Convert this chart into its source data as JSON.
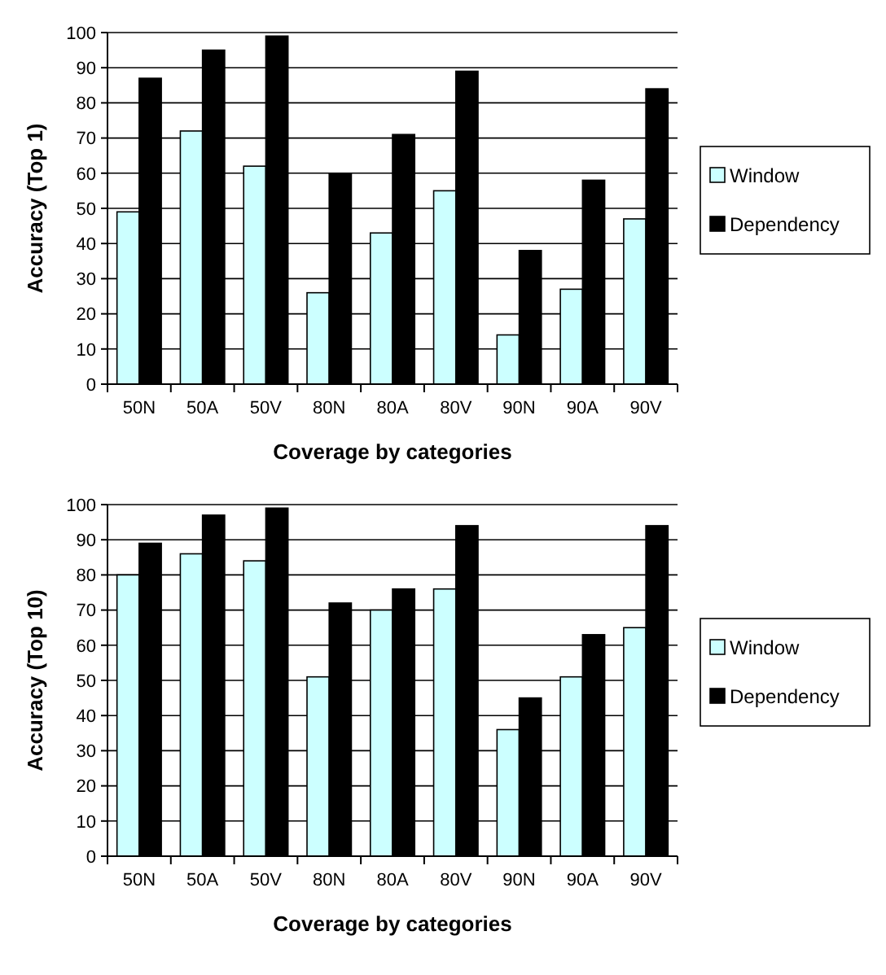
{
  "chart_data": [
    {
      "type": "bar",
      "xlabel": "Coverage by categories",
      "ylabel": "Accuracy (Top 1)",
      "categories": [
        "50N",
        "50A",
        "50V",
        "80N",
        "80A",
        "80V",
        "90N",
        "90A",
        "90V"
      ],
      "series": [
        {
          "name": "Window",
          "color": "#ccffff",
          "values": [
            49,
            72,
            62,
            26,
            43,
            55,
            14,
            27,
            47
          ]
        },
        {
          "name": "Dependency",
          "color": "#000000",
          "values": [
            87,
            95,
            99,
            60,
            71,
            89,
            38,
            58,
            84
          ]
        }
      ],
      "ylim": [
        0,
        100
      ],
      "yticks": [
        0,
        10,
        20,
        30,
        40,
        50,
        60,
        70,
        80,
        90,
        100
      ],
      "grid": "y",
      "legend": "right"
    },
    {
      "type": "bar",
      "xlabel": "Coverage by categories",
      "ylabel": "Accuracy (Top 10)",
      "categories": [
        "50N",
        "50A",
        "50V",
        "80N",
        "80A",
        "80V",
        "90N",
        "90A",
        "90V"
      ],
      "series": [
        {
          "name": "Window",
          "color": "#ccffff",
          "values": [
            80,
            86,
            84,
            51,
            70,
            76,
            36,
            51,
            65
          ]
        },
        {
          "name": "Dependency",
          "color": "#000000",
          "values": [
            89,
            97,
            99,
            72,
            76,
            94,
            45,
            63,
            94
          ]
        }
      ],
      "ylim": [
        0,
        100
      ],
      "yticks": [
        0,
        10,
        20,
        30,
        40,
        50,
        60,
        70,
        80,
        90,
        100
      ],
      "grid": "y",
      "legend": "right"
    }
  ]
}
